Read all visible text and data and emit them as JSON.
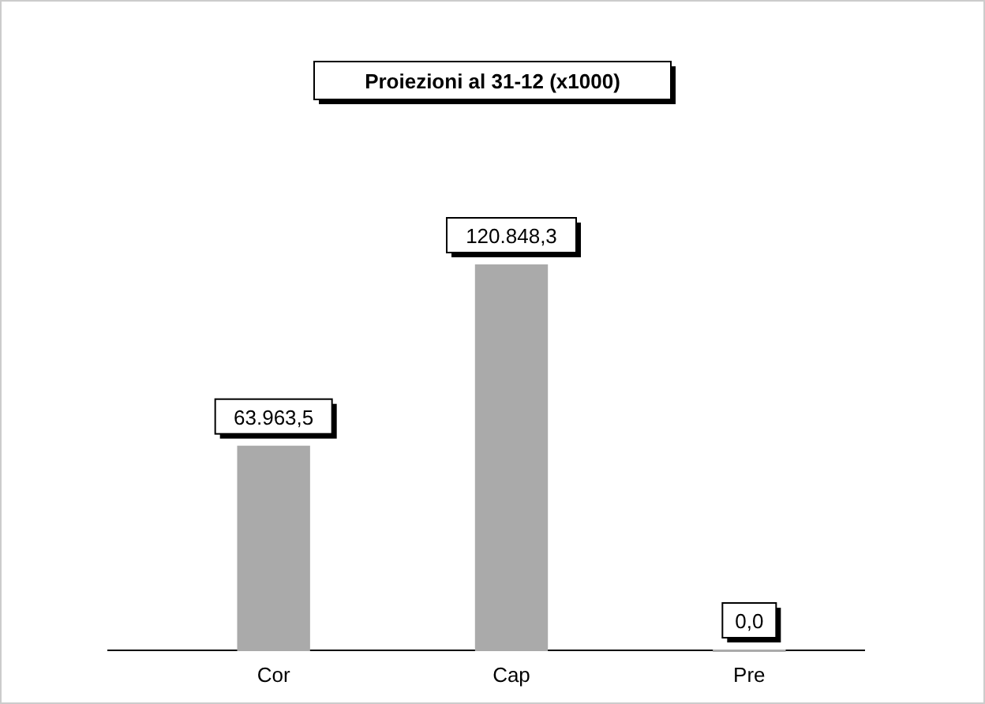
{
  "chart_data": {
    "type": "bar",
    "title": "Proiezioni al 31-12 (x1000)",
    "categories": [
      "Cor",
      "Cap",
      "Pre"
    ],
    "values": [
      63963.5,
      120848.3,
      0.0
    ],
    "value_labels": [
      "63.963,5",
      "120.848,3",
      "0,0"
    ],
    "colors": [
      "#aaaaaa",
      "#aaaaaa",
      "#aaaaaa"
    ]
  }
}
